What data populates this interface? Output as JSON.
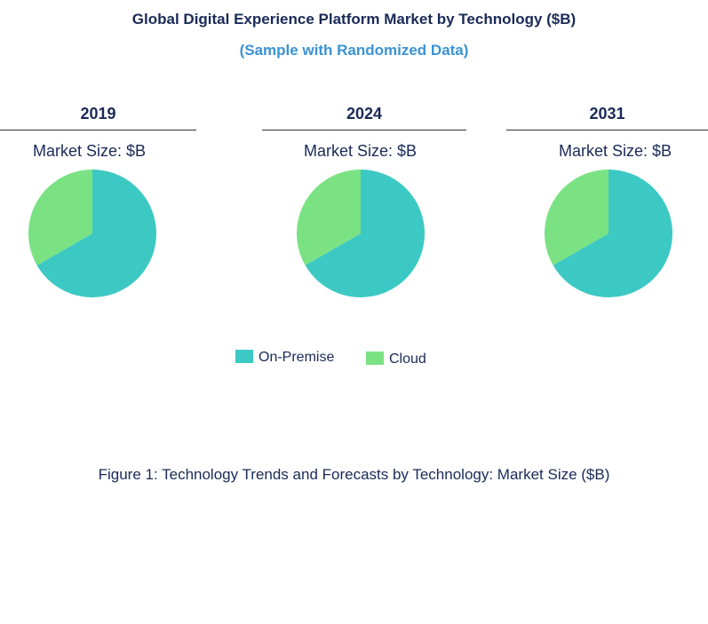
{
  "header": {
    "title": "Global Digital Experience Platform  Market by Technology ($B)",
    "subtitle": "(Sample with Randomized Data)"
  },
  "caption": "Figure 1: Technology Trends and Forecasts by Technology: Market Size ($B)",
  "colors": {
    "on_premise": "#3cc9c4",
    "cloud": "#7be283"
  },
  "chart_data": [
    {
      "type": "pie",
      "title": "2019",
      "subtitle": "Market Size: $B",
      "categories": [
        "On-Premise",
        "Cloud"
      ],
      "values": [
        66.7,
        33.3
      ]
    },
    {
      "type": "pie",
      "title": "2024",
      "subtitle": "Market Size: $B",
      "categories": [
        "On-Premise",
        "Cloud"
      ],
      "values": [
        66.7,
        33.3
      ]
    },
    {
      "type": "pie",
      "title": "2031",
      "subtitle": "Market Size: $B",
      "categories": [
        "On-Premise",
        "Cloud"
      ],
      "values": [
        66.7,
        33.3
      ]
    }
  ],
  "legend": {
    "position": "bottom-center",
    "items": [
      {
        "label": "On-Premise"
      },
      {
        "label": "Cloud"
      }
    ]
  }
}
